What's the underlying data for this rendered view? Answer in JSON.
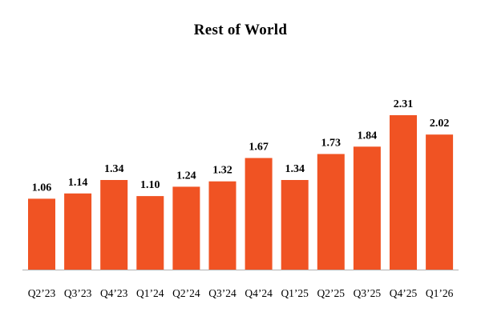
{
  "chart_data": {
    "type": "bar",
    "title": "Rest of World",
    "xlabel": "",
    "ylabel": "",
    "categories": [
      "Q2’23",
      "Q3’23",
      "Q4’23",
      "Q1’24",
      "Q2’24",
      "Q3’24",
      "Q4’24",
      "Q1’25",
      "Q2’25",
      "Q3’25",
      "Q4’25",
      "Q1’26"
    ],
    "values": [
      1.06,
      1.14,
      1.34,
      1.1,
      1.24,
      1.32,
      1.67,
      1.34,
      1.73,
      1.84,
      2.31,
      2.02
    ],
    "value_labels": [
      "1.06",
      "1.14",
      "1.34",
      "1.10",
      "1.24",
      "1.32",
      "1.67",
      "1.34",
      "1.73",
      "1.84",
      "2.31",
      "2.02"
    ],
    "ylim": [
      0,
      2.31
    ],
    "grid": false,
    "legend": "none",
    "bar_color": "#F05323",
    "axis_color": "#B0B0B0"
  }
}
